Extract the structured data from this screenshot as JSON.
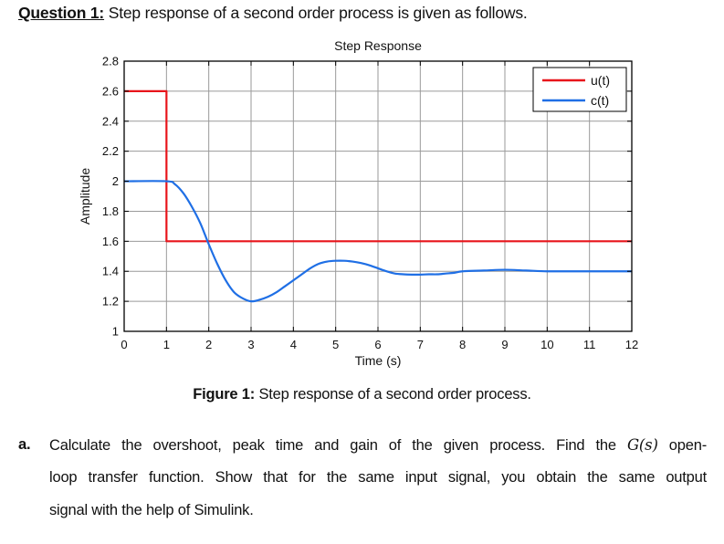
{
  "question": {
    "label": "Question 1:",
    "text": " Step response of a second order process is given as follows."
  },
  "chart_data": {
    "type": "line",
    "title": "Step Response",
    "xlabel": "Time (s)",
    "ylabel": "Amplitude",
    "xlim": [
      0,
      12
    ],
    "ylim": [
      1,
      2.8
    ],
    "xticks": [
      0,
      1,
      2,
      3,
      4,
      5,
      6,
      7,
      8,
      9,
      10,
      11,
      12
    ],
    "yticks": [
      1,
      1.2,
      1.4,
      1.6,
      1.8,
      2,
      2.2,
      2.4,
      2.6,
      2.8
    ],
    "ytick_labels": [
      "1",
      "1.2",
      "1.4",
      "1.6",
      "1.8",
      "2",
      "2.2",
      "2.4",
      "2.6",
      "2.8"
    ],
    "grid": true,
    "legend_position": "upper right",
    "series": [
      {
        "name": "u(t)",
        "color": "#e8151b",
        "x": [
          0,
          1,
          1,
          12
        ],
        "y": [
          2.6,
          2.6,
          1.6,
          1.6
        ]
      },
      {
        "name": "c(t)",
        "color": "#1f6fe5",
        "x": [
          0,
          1,
          1.2,
          1.4,
          1.6,
          1.8,
          2.0,
          2.2,
          2.4,
          2.6,
          2.8,
          3.0,
          3.2,
          3.4,
          3.6,
          3.8,
          4.0,
          4.2,
          4.4,
          4.6,
          4.8,
          5.0,
          5.2,
          5.4,
          5.6,
          5.8,
          6.0,
          6.2,
          6.4,
          6.6,
          6.8,
          7.0,
          7.2,
          7.4,
          7.6,
          7.8,
          8.0,
          8.5,
          9.0,
          9.5,
          10.0,
          10.5,
          11.0,
          11.5,
          12.0
        ],
        "y": [
          2.0,
          2.0,
          1.98,
          1.92,
          1.83,
          1.72,
          1.58,
          1.45,
          1.34,
          1.26,
          1.22,
          1.2,
          1.21,
          1.23,
          1.26,
          1.3,
          1.34,
          1.38,
          1.42,
          1.45,
          1.465,
          1.47,
          1.47,
          1.465,
          1.455,
          1.44,
          1.42,
          1.4,
          1.385,
          1.38,
          1.378,
          1.378,
          1.38,
          1.38,
          1.385,
          1.39,
          1.4,
          1.405,
          1.41,
          1.405,
          1.4,
          1.4,
          1.4,
          1.4,
          1.4
        ]
      }
    ]
  },
  "figure": {
    "label": "Figure 1:",
    "caption": " Step response of a second order process."
  },
  "task_a": {
    "marker": "a.",
    "line1_pre": "Calculate the overshoot, peak time and gain of the given process. Find the ",
    "line1_math": "G(s)",
    "line1_post": " open-",
    "line2": "loop transfer function. Show that for the same input signal, you obtain the same output",
    "line3": "signal with the help of Simulink."
  }
}
